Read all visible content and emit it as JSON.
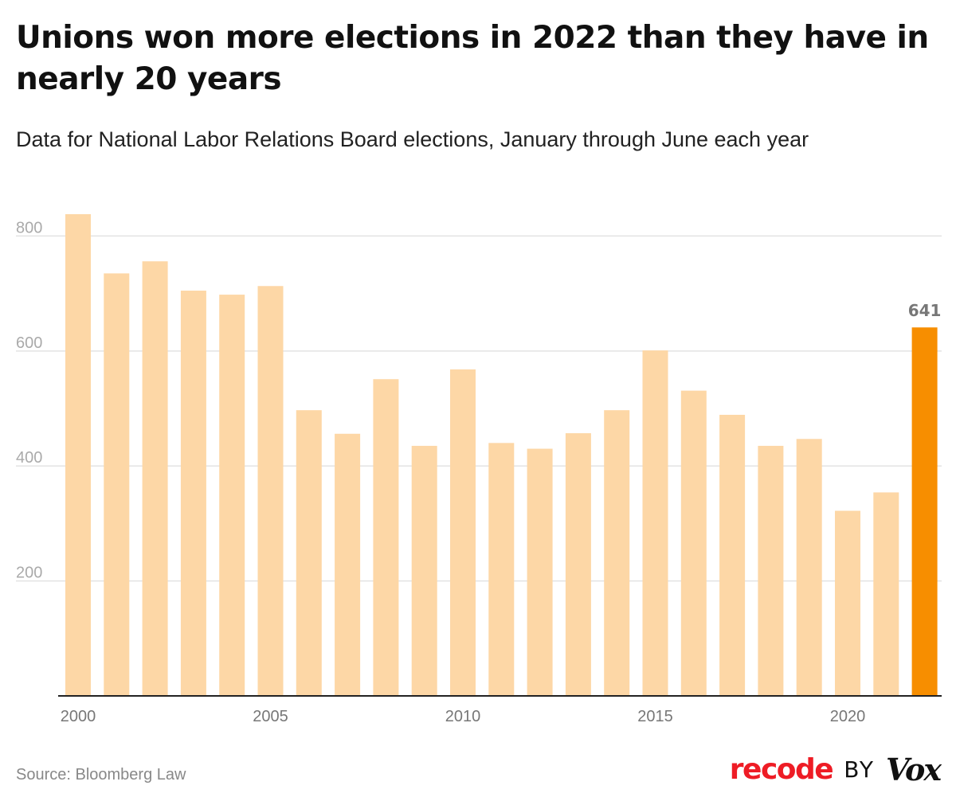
{
  "title": "Unions won more elections in 2022 than they have in nearly 20 years",
  "subtitle": "Data for National Labor Relations Board elections, January through June each year",
  "source": "Source: Bloomberg Law",
  "brand": {
    "recode": "recode",
    "by": "BY",
    "vox": "Vox"
  },
  "colors": {
    "bar": "#fdd7a6",
    "highlight": "#f78e00",
    "grid": "#e3e3e3",
    "axis": "#222222",
    "tick_text": "#aaaaaa",
    "label_text": "#777777"
  },
  "chart_data": {
    "type": "bar",
    "x": [
      2000,
      2001,
      2002,
      2003,
      2004,
      2005,
      2006,
      2007,
      2008,
      2009,
      2010,
      2011,
      2012,
      2013,
      2014,
      2015,
      2016,
      2017,
      2018,
      2019,
      2020,
      2021,
      2022
    ],
    "values": [
      838,
      735,
      756,
      705,
      698,
      713,
      497,
      456,
      551,
      435,
      568,
      440,
      430,
      457,
      497,
      601,
      531,
      489,
      435,
      447,
      322,
      354,
      641
    ],
    "highlight_index": 22,
    "highlight_label": "641",
    "x_ticks": [
      2000,
      2005,
      2010,
      2015,
      2020
    ],
    "y_ticks": [
      200,
      400,
      600,
      800
    ],
    "ylim": [
      0,
      838
    ],
    "grid": true,
    "title": "Unions won more elections in 2022 than they have in nearly 20 years",
    "xlabel": "",
    "ylabel": ""
  }
}
